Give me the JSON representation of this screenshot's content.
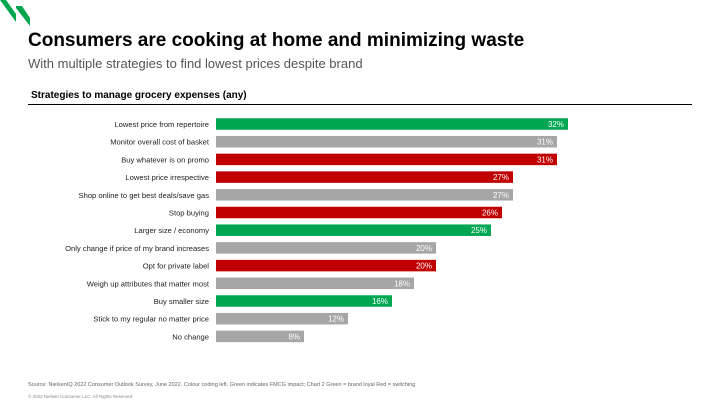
{
  "header": {
    "title": "Consumers are cooking at home and minimizing waste",
    "subtitle": "With multiple strategies to find lowest prices despite brand"
  },
  "section_heading": "Strategies to manage grocery expenses (any)",
  "colors": {
    "brand_green": "#00a64f",
    "green": "#00a651",
    "red": "#c00000",
    "gray": "#a6a6a6"
  },
  "chart_data": {
    "type": "bar",
    "orientation": "horizontal",
    "title": "Strategies to manage grocery expenses (any)",
    "categories": [
      "Lowest price from repertoire",
      "Monitor overall cost of basket",
      "Buy whatever is on promo",
      "Lowest price irrespective",
      "Shop online to get best deals/save gas",
      "Stop buying",
      "Larger size / economy",
      "Only change  if price of my brand increases",
      "Opt for private label",
      "Weigh up attributes that matter most",
      "Buy smaller size",
      "Stick to my regular no matter price",
      "No change"
    ],
    "values": [
      32,
      31,
      31,
      27,
      27,
      26,
      25,
      20,
      20,
      18,
      16,
      12,
      8
    ],
    "value_labels": [
      "32%",
      "31%",
      "31%",
      "27%",
      "27%",
      "26%",
      "25%",
      "20%",
      "20%",
      "18%",
      "16%",
      "12%",
      "8%"
    ],
    "bar_colors": [
      "green",
      "gray",
      "red",
      "red",
      "gray",
      "red",
      "green",
      "gray",
      "red",
      "gray",
      "green",
      "gray",
      "gray"
    ],
    "xlim": [
      0,
      32
    ],
    "grid": false,
    "legend": "none"
  },
  "footer": {
    "source": "Source: NielsenIQ 2022 Consumer Outlook Survey, June 2022. Colour coding left. Green indicates FMCG impact; Chart 2 Green = brand loyal Red = switching",
    "copyright": "© 2022 Nielsen Consumer LLC. All Rights Reserved."
  }
}
